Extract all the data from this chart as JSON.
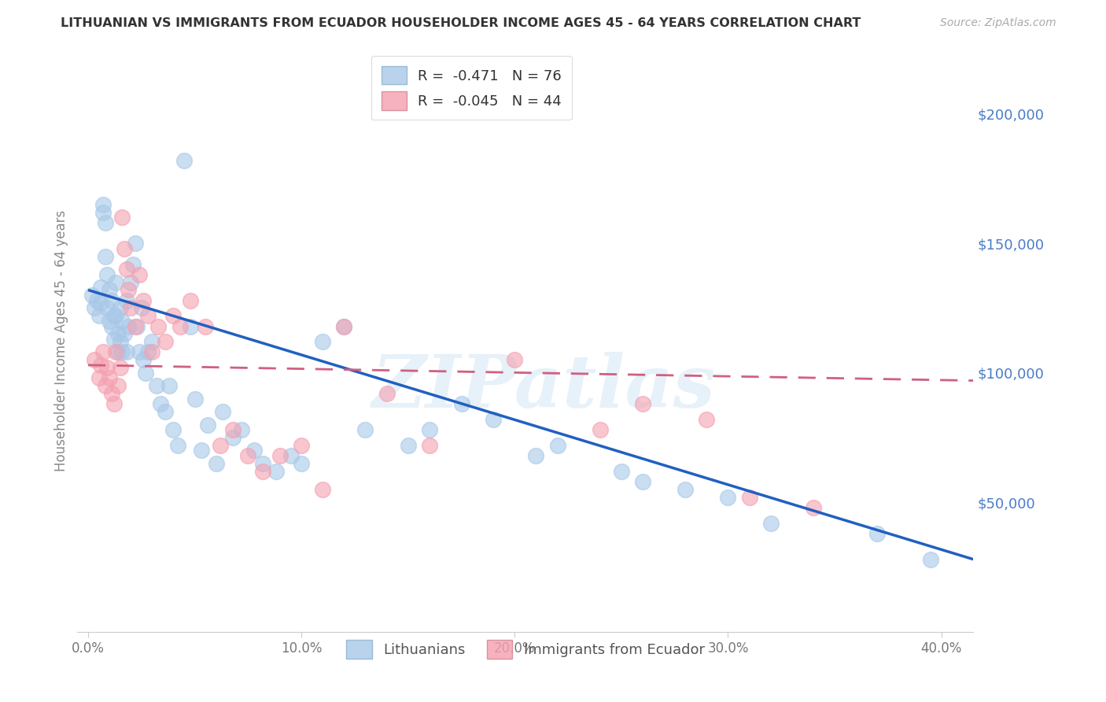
{
  "title": "LITHUANIAN VS IMMIGRANTS FROM ECUADOR HOUSEHOLDER INCOME AGES 45 - 64 YEARS CORRELATION CHART",
  "source": "Source: ZipAtlas.com",
  "ylabel": "Householder Income Ages 45 - 64 years",
  "xlabel_ticks": [
    "0.0%",
    "10.0%",
    "20.0%",
    "30.0%",
    "40.0%"
  ],
  "xlabel_vals": [
    0.0,
    0.1,
    0.2,
    0.3,
    0.4
  ],
  "ylabel_ticks": [
    "$50,000",
    "$100,000",
    "$150,000",
    "$200,000"
  ],
  "ylabel_vals": [
    50000,
    100000,
    150000,
    200000
  ],
  "xlim": [
    -0.005,
    0.415
  ],
  "ylim": [
    0,
    225000
  ],
  "legend_blue_label": "R =  -0.471   N = 76",
  "legend_pink_label": "R =  -0.045   N = 44",
  "blue_color": "#a8c8e8",
  "pink_color": "#f4a0b0",
  "trend_blue_color": "#2060c0",
  "trend_pink_color": "#d06080",
  "background_color": "#ffffff",
  "grid_color": "#cccccc",
  "watermark": "ZIPatlas",
  "blue_scatter_x": [
    0.002,
    0.003,
    0.004,
    0.005,
    0.006,
    0.006,
    0.007,
    0.007,
    0.008,
    0.008,
    0.009,
    0.009,
    0.01,
    0.01,
    0.011,
    0.011,
    0.012,
    0.012,
    0.013,
    0.013,
    0.014,
    0.014,
    0.015,
    0.015,
    0.016,
    0.016,
    0.017,
    0.018,
    0.018,
    0.019,
    0.02,
    0.021,
    0.022,
    0.023,
    0.024,
    0.025,
    0.026,
    0.027,
    0.028,
    0.03,
    0.032,
    0.034,
    0.036,
    0.038,
    0.04,
    0.042,
    0.045,
    0.048,
    0.05,
    0.053,
    0.056,
    0.06,
    0.063,
    0.068,
    0.072,
    0.078,
    0.082,
    0.088,
    0.095,
    0.1,
    0.11,
    0.12,
    0.13,
    0.15,
    0.16,
    0.175,
    0.19,
    0.21,
    0.22,
    0.25,
    0.26,
    0.28,
    0.3,
    0.32,
    0.37,
    0.395
  ],
  "blue_scatter_y": [
    130000,
    125000,
    128000,
    122000,
    133000,
    127000,
    165000,
    162000,
    158000,
    145000,
    138000,
    125000,
    132000,
    120000,
    128000,
    118000,
    122000,
    113000,
    135000,
    122000,
    115000,
    108000,
    125000,
    112000,
    120000,
    108000,
    115000,
    128000,
    108000,
    118000,
    135000,
    142000,
    150000,
    118000,
    108000,
    125000,
    105000,
    100000,
    108000,
    112000,
    95000,
    88000,
    85000,
    95000,
    78000,
    72000,
    182000,
    118000,
    90000,
    70000,
    80000,
    65000,
    85000,
    75000,
    78000,
    70000,
    65000,
    62000,
    68000,
    65000,
    112000,
    118000,
    78000,
    72000,
    78000,
    88000,
    82000,
    68000,
    72000,
    62000,
    58000,
    55000,
    52000,
    42000,
    38000,
    28000
  ],
  "pink_scatter_x": [
    0.003,
    0.005,
    0.006,
    0.007,
    0.008,
    0.009,
    0.01,
    0.011,
    0.012,
    0.013,
    0.014,
    0.015,
    0.016,
    0.017,
    0.018,
    0.019,
    0.02,
    0.022,
    0.024,
    0.026,
    0.028,
    0.03,
    0.033,
    0.036,
    0.04,
    0.043,
    0.048,
    0.055,
    0.062,
    0.068,
    0.075,
    0.082,
    0.09,
    0.1,
    0.11,
    0.12,
    0.14,
    0.16,
    0.2,
    0.24,
    0.26,
    0.29,
    0.31,
    0.34
  ],
  "pink_scatter_y": [
    105000,
    98000,
    103000,
    108000,
    95000,
    102000,
    98000,
    92000,
    88000,
    108000,
    95000,
    102000,
    160000,
    148000,
    140000,
    132000,
    125000,
    118000,
    138000,
    128000,
    122000,
    108000,
    118000,
    112000,
    122000,
    118000,
    128000,
    118000,
    72000,
    78000,
    68000,
    62000,
    68000,
    72000,
    55000,
    118000,
    92000,
    72000,
    105000,
    78000,
    88000,
    82000,
    52000,
    48000
  ],
  "blue_trend_x0": 0.0,
  "blue_trend_x1": 0.415,
  "blue_trend_y0": 132000,
  "blue_trend_y1": 28000,
  "pink_trend_x0": 0.0,
  "pink_trend_x1": 0.415,
  "pink_trend_y0": 103000,
  "pink_trend_y1": 97000
}
